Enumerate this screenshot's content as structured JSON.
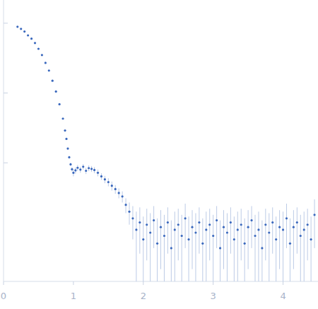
{
  "chart_data": {
    "type": "scatter",
    "log": "y",
    "tick_labels": "x",
    "color": "#3a68bd",
    "marker": "circle",
    "xlim": [
      0,
      4.5
    ],
    "xticks": [
      0,
      1,
      2,
      3,
      4
    ],
    "ylim": [
      0.0002,
      2.15
    ],
    "yticks": [
      0.01,
      0.1,
      1
    ],
    "x": [
      0.2,
      0.25,
      0.3,
      0.35,
      0.4,
      0.45,
      0.5,
      0.55,
      0.6,
      0.65,
      0.7,
      0.75,
      0.8,
      0.85,
      0.88,
      0.9,
      0.92,
      0.94,
      0.96,
      0.98,
      1.0,
      1.03,
      1.06,
      1.1,
      1.14,
      1.18,
      1.22,
      1.26,
      1.3,
      1.35,
      1.4,
      1.45,
      1.5,
      1.55,
      1.6,
      1.65,
      1.7,
      1.75,
      1.8,
      1.85,
      1.9,
      1.95,
      2.0,
      2.05,
      2.1,
      2.15,
      2.2,
      2.25,
      2.3,
      2.35,
      2.4,
      2.45,
      2.5,
      2.55,
      2.6,
      2.65,
      2.7,
      2.75,
      2.8,
      2.85,
      2.9,
      2.95,
      3.0,
      3.05,
      3.1,
      3.15,
      3.2,
      3.25,
      3.3,
      3.35,
      3.4,
      3.45,
      3.5,
      3.55,
      3.6,
      3.65,
      3.7,
      3.75,
      3.8,
      3.85,
      3.9,
      3.95,
      4.0,
      4.05,
      4.1,
      4.15,
      4.2,
      4.25,
      4.3,
      4.35,
      4.4,
      4.45
    ],
    "values": [
      0.89,
      0.83,
      0.76,
      0.67,
      0.6,
      0.52,
      0.43,
      0.35,
      0.27,
      0.21,
      0.15,
      0.105,
      0.069,
      0.043,
      0.029,
      0.022,
      0.016,
      0.012,
      0.0095,
      0.0081,
      0.0072,
      0.0078,
      0.0085,
      0.008,
      0.0088,
      0.0077,
      0.0084,
      0.0082,
      0.0079,
      0.0072,
      0.0064,
      0.0058,
      0.0053,
      0.0047,
      0.0042,
      0.0037,
      0.0033,
      0.0025,
      0.002,
      0.0016,
      0.0011,
      0.0014,
      0.0008,
      0.0013,
      0.001,
      0.0015,
      0.0007,
      0.0012,
      0.0009,
      0.0014,
      0.0006,
      0.0011,
      0.0013,
      0.0009,
      0.0016,
      0.0008,
      0.0012,
      0.001,
      0.0014,
      0.0007,
      0.0011,
      0.0013,
      0.0009,
      0.0015,
      0.0006,
      0.0012,
      0.001,
      0.0014,
      0.0008,
      0.0011,
      0.0013,
      0.0007,
      0.0012,
      0.0015,
      0.0009,
      0.0011,
      0.0006,
      0.0013,
      0.001,
      0.0014,
      0.0008,
      0.0012,
      0.0011,
      0.0016,
      0.0007,
      0.0012,
      0.0014,
      0.0009,
      0.0011,
      0.0013,
      0.0008,
      0.0018
    ],
    "errors": [
      0.005,
      0.005,
      0.005,
      0.004,
      0.004,
      0.004,
      0.003,
      0.003,
      0.003,
      0.002,
      0.002,
      0.0015,
      0.001,
      0.0008,
      0.0006,
      0.0005,
      0.0005,
      0.0005,
      0.0005,
      0.0006,
      0.0008,
      0.0008,
      0.0008,
      0.0008,
      0.0008,
      0.0008,
      0.0008,
      0.0008,
      0.0008,
      0.0008,
      0.0007,
      0.0007,
      0.0007,
      0.0007,
      0.0006,
      0.0006,
      0.0006,
      0.0006,
      0.0007,
      0.0008,
      0.0009,
      0.0009,
      0.0009,
      0.0009,
      0.0009,
      0.0009,
      0.0009,
      0.0009,
      0.0009,
      0.0009,
      0.0009,
      0.0009,
      0.0009,
      0.0009,
      0.001,
      0.0009,
      0.0009,
      0.0009,
      0.0009,
      0.0009,
      0.0009,
      0.0009,
      0.0009,
      0.0009,
      0.0009,
      0.0009,
      0.0009,
      0.0009,
      0.0009,
      0.0009,
      0.0009,
      0.0009,
      0.0009,
      0.0009,
      0.0009,
      0.0009,
      0.0009,
      0.0009,
      0.0009,
      0.0009,
      0.0009,
      0.0009,
      0.0009,
      0.001,
      0.0009,
      0.0009,
      0.0009,
      0.0009,
      0.0009,
      0.0009,
      0.0009,
      0.0012
    ]
  }
}
